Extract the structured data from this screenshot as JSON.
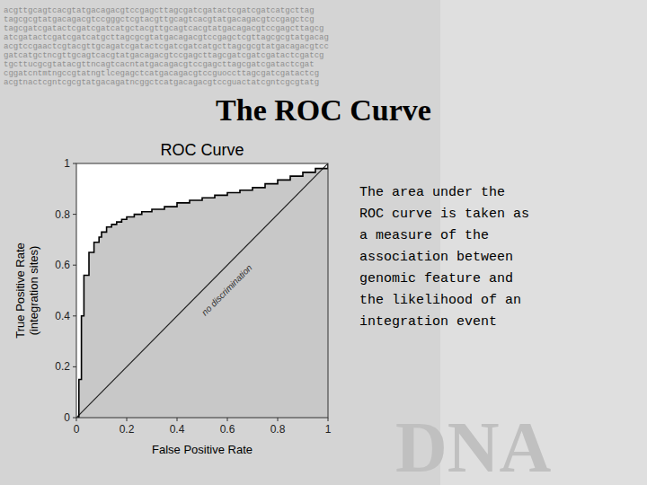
{
  "chart_data": {
    "type": "line",
    "title": "The ROC Curve",
    "subtitle": "ROC Curve",
    "x_label": "False Positive Rate",
    "y_label": "True Positive Rate\n(integration sites)",
    "xlim": [
      0,
      1
    ],
    "ylim": [
      0,
      1
    ],
    "xticks": [
      0,
      0.2,
      0.4,
      0.6,
      0.8,
      1
    ],
    "yticks": [
      0,
      0.2,
      0.4,
      0.6,
      0.8,
      1
    ],
    "grid": false,
    "series": [
      {
        "type": "area",
        "color": "#c8c8c8",
        "x": [
          0,
          0.01,
          0.01,
          0.02,
          0.02,
          0.03,
          0.03,
          0.05,
          0.05,
          0.07,
          0.07,
          0.09,
          0.09,
          0.1,
          0.1,
          0.12,
          0.12,
          0.14,
          0.14,
          0.16,
          0.16,
          0.18,
          0.18,
          0.2,
          0.2,
          0.23,
          0.23,
          0.26,
          0.26,
          0.3,
          0.3,
          0.35,
          0.35,
          0.4,
          0.4,
          0.45,
          0.45,
          0.5,
          0.5,
          0.55,
          0.55,
          0.6,
          0.6,
          0.65,
          0.65,
          0.7,
          0.7,
          0.75,
          0.75,
          0.8,
          0.8,
          0.85,
          0.85,
          0.9,
          0.9,
          0.95,
          0.95,
          1.0,
          1.0
        ],
        "values": [
          0,
          0,
          0.15,
          0.15,
          0.4,
          0.4,
          0.56,
          0.56,
          0.65,
          0.65,
          0.69,
          0.69,
          0.71,
          0.71,
          0.73,
          0.73,
          0.75,
          0.75,
          0.76,
          0.76,
          0.77,
          0.77,
          0.78,
          0.78,
          0.79,
          0.79,
          0.8,
          0.8,
          0.81,
          0.81,
          0.82,
          0.82,
          0.83,
          0.83,
          0.845,
          0.845,
          0.855,
          0.855,
          0.865,
          0.865,
          0.875,
          0.875,
          0.885,
          0.885,
          0.895,
          0.895,
          0.905,
          0.905,
          0.92,
          0.92,
          0.935,
          0.935,
          0.95,
          0.95,
          0.965,
          0.965,
          0.98,
          0.98,
          1.0
        ]
      },
      {
        "type": "line",
        "color": "#222222",
        "x": [
          0,
          1
        ],
        "values": [
          0,
          1
        ]
      },
      {
        "type": "line",
        "color": "#000000",
        "x": [
          0,
          0.01,
          0.01,
          0.02,
          0.02,
          0.03,
          0.03,
          0.05,
          0.05,
          0.07,
          0.07,
          0.09,
          0.09,
          0.1,
          0.1,
          0.12,
          0.12,
          0.14,
          0.14,
          0.16,
          0.16,
          0.18,
          0.18,
          0.2,
          0.2,
          0.23,
          0.23,
          0.26,
          0.26,
          0.3,
          0.3,
          0.35,
          0.35,
          0.4,
          0.4,
          0.45,
          0.45,
          0.5,
          0.5,
          0.55,
          0.55,
          0.6,
          0.6,
          0.65,
          0.65,
          0.7,
          0.7,
          0.75,
          0.75,
          0.8,
          0.8,
          0.85,
          0.85,
          0.9,
          0.9,
          0.95,
          0.95,
          1.0,
          1.0
        ],
        "values": [
          0,
          0,
          0.15,
          0.15,
          0.4,
          0.4,
          0.56,
          0.56,
          0.65,
          0.65,
          0.69,
          0.69,
          0.71,
          0.71,
          0.73,
          0.73,
          0.75,
          0.75,
          0.76,
          0.76,
          0.77,
          0.77,
          0.78,
          0.78,
          0.79,
          0.79,
          0.8,
          0.8,
          0.81,
          0.81,
          0.82,
          0.82,
          0.83,
          0.83,
          0.845,
          0.845,
          0.855,
          0.855,
          0.865,
          0.865,
          0.875,
          0.875,
          0.885,
          0.885,
          0.895,
          0.895,
          0.905,
          0.905,
          0.92,
          0.92,
          0.935,
          0.935,
          0.95,
          0.95,
          0.965,
          0.965,
          0.98,
          0.98,
          1.0
        ]
      }
    ],
    "annotations": [
      {
        "text": "no discrimination",
        "x": 0.6,
        "y": 0.5
      },
      {
        "text": "The area under the\nROC curve is taken as\na measure of the\nassociation between\ngenomic feature and\nthe likelihood of an\nintegration event"
      }
    ],
    "background_text": [
      "acgttgcagtcacgtatgacagacgtccgagcttagcgatcgatactcgatcgatcatgcttag",
      "tagcgcgtatgacagacgtccgggctcgtacgttgcagtcacgtatgacagacgtccgagctcg",
      "tagcgatcgatactcgatcgatcatgctacgttgcagtcacgtatgacagacgtccgagcttagcg",
      "atcgatactcgatcgatcatgcttagcgcgtatgacagacgtccgagctcgttagcgcgtatgacag",
      "acgtccgaactcgtacgttgcagatcgatactcgatcgatcatgcttagcgcgtatgacagacgtcc",
      "gatcatgctncgttgcagtcacgtatgacagacgtccgagcttagcgatcgatcgatactcgatcg",
      "tgcttucgcgtatacgttncagtcacntatgacagacgtccgagcttagcgatcgatactcgat",
      "cggatcntmtngccgtatngtlcegagctcatgacagacgtccguoccttagcgatcgatactcg",
      "acgtnactcgntcgcgtatgacagatncggctcatgacagacgtccguactatcgntcgcgtatg"
    ],
    "watermark": "DNA"
  }
}
